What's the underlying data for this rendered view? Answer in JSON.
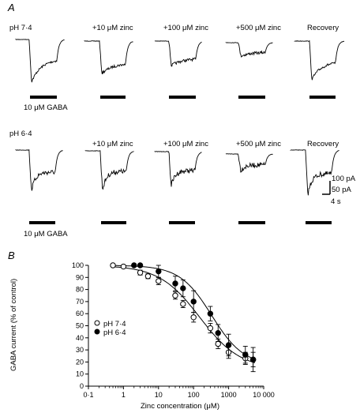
{
  "panel_a": {
    "letter": "A",
    "row1": {
      "ph_label": "pH 7·4",
      "conditions": [
        "",
        "+10 μM zinc",
        "+100 μM zinc",
        "+500 μM zinc",
        "Recovery"
      ],
      "gaba_label": "10 μM GABA"
    },
    "row2": {
      "ph_label": "pH 6·4",
      "conditions": [
        "",
        "+10 μM zinc",
        "+100 μM zinc",
        "+500 μM zinc",
        "Recovery"
      ],
      "gaba_label": "10 μM GABA"
    },
    "scale": {
      "current_100": "100 pA",
      "current_50": "50 pA",
      "time": "4 s"
    }
  },
  "panel_b": {
    "letter": "B",
    "chart_data": {
      "type": "scatter",
      "xlabel": "Zinc concentration (μM)",
      "ylabel": "GABA current (% of control)",
      "x_scale": "log",
      "xlim": [
        0.1,
        10000
      ],
      "ylim": [
        0,
        100
      ],
      "x_tick_labels": [
        "0·1",
        "1",
        "10",
        "100",
        "1000",
        "10 000"
      ],
      "y_tick_labels": [
        "0",
        "10",
        "20",
        "30",
        "40",
        "50",
        "60",
        "70",
        "80",
        "90",
        "100"
      ],
      "legend_position": "left",
      "series": [
        {
          "name": "pH 7·4",
          "marker": "open-circle",
          "x": [
            0.5,
            1,
            3,
            5,
            10,
            30,
            50,
            100,
            300,
            500,
            1000,
            3000,
            5000
          ],
          "y": [
            100,
            99,
            94,
            91,
            87,
            75,
            68,
            57,
            48,
            35,
            28,
            23,
            22
          ],
          "err": [
            0,
            0,
            2,
            2,
            3,
            3,
            3,
            4,
            4,
            4,
            5,
            5,
            6
          ]
        },
        {
          "name": "pH 6·4",
          "marker": "filled-circle",
          "x": [
            2,
            3,
            10,
            30,
            50,
            100,
            300,
            500,
            1000,
            3000,
            5000
          ],
          "y": [
            100,
            100,
            95,
            85,
            81,
            70,
            60,
            44,
            34,
            26,
            22
          ],
          "err": [
            0,
            0,
            5,
            6,
            7,
            9,
            6,
            7,
            9,
            7,
            10
          ]
        }
      ]
    }
  }
}
